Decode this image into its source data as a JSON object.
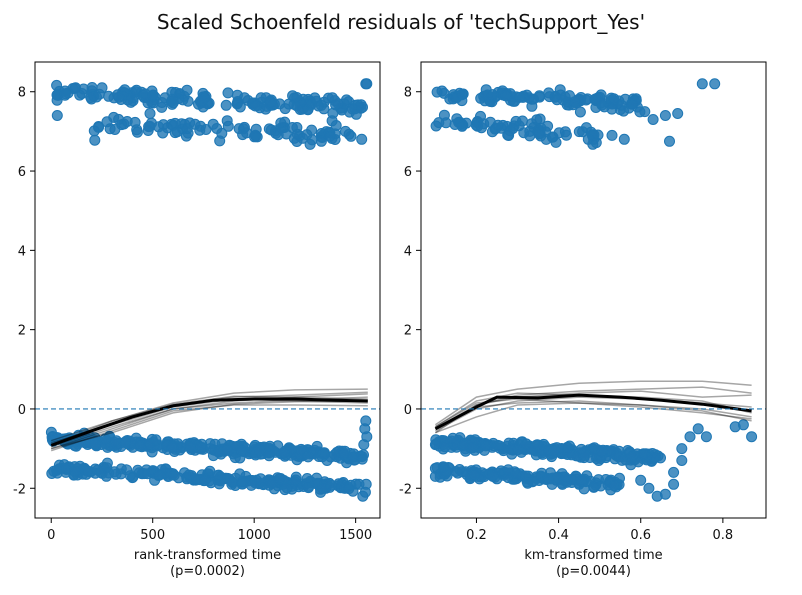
{
  "figure": {
    "title": "Scaled Schoenfeld residuals of 'techSupport_Yes'"
  },
  "chart_data": [
    {
      "type": "scatter",
      "xlabel": "rank-transformed time",
      "xlabel2": "(p=0.0002)",
      "xlim": [
        -80,
        1620
      ],
      "ylim": [
        -2.75,
        8.75
      ],
      "xticks": [
        0,
        500,
        1000,
        1500
      ],
      "yticks": [
        -2,
        0,
        2,
        4,
        6,
        8
      ],
      "reference_line_y": 0,
      "point_color": "#1f77b4",
      "clusters": [
        {
          "name": "upper-top",
          "x_start": 20,
          "x_end": 1540,
          "y_start": 7.95,
          "y_end": 7.65,
          "jitter": 0.1,
          "n": 160
        },
        {
          "name": "upper-bottom",
          "x_start": 200,
          "x_end": 1480,
          "y_start": 7.2,
          "y_end": 6.9,
          "jitter": 0.12,
          "n": 95
        },
        {
          "name": "lower-top",
          "x_start": 0,
          "x_end": 1540,
          "y_start": -0.78,
          "y_end": -1.2,
          "jitter": 0.07,
          "n": 300
        },
        {
          "name": "lower-bottom",
          "x_start": 0,
          "x_end": 1520,
          "y_start": -1.5,
          "y_end": -1.98,
          "jitter": 0.07,
          "n": 220
        }
      ],
      "extra_points": [
        {
          "x": 30,
          "y": 7.4
        },
        {
          "x": 70,
          "y": 7.95
        },
        {
          "x": 120,
          "y": 8.1
        },
        {
          "x": 250,
          "y": 8.1
        },
        {
          "x": 1550,
          "y": 8.2
        },
        {
          "x": 1555,
          "y": 8.2
        },
        {
          "x": 1530,
          "y": 6.8
        },
        {
          "x": 1550,
          "y": -0.3
        },
        {
          "x": 1545,
          "y": -0.5
        },
        {
          "x": 1555,
          "y": -0.7
        },
        {
          "x": 1540,
          "y": -0.9
        },
        {
          "x": 1535,
          "y": -2.2
        },
        {
          "x": 1548,
          "y": -2.1
        },
        {
          "x": 1552,
          "y": -1.9
        }
      ],
      "lowess_main": {
        "x": [
          0,
          200,
          400,
          600,
          800,
          1000,
          1200,
          1400,
          1560
        ],
        "y": [
          -0.92,
          -0.55,
          -0.2,
          0.08,
          0.22,
          0.25,
          0.25,
          0.22,
          0.2
        ]
      },
      "bootstrap_curves": [
        {
          "x": [
            0,
            300,
            600,
            900,
            1200,
            1560
          ],
          "y": [
            -0.8,
            -0.3,
            0.15,
            0.4,
            0.48,
            0.5
          ]
        },
        {
          "x": [
            0,
            300,
            600,
            900,
            1200,
            1560
          ],
          "y": [
            -1.0,
            -0.5,
            0.0,
            0.2,
            0.3,
            0.38
          ]
        },
        {
          "x": [
            0,
            300,
            600,
            900,
            1200,
            1560
          ],
          "y": [
            -0.9,
            -0.35,
            0.1,
            0.3,
            0.35,
            0.42
          ]
        },
        {
          "x": [
            0,
            300,
            600,
            900,
            1200,
            1560
          ],
          "y": [
            -1.05,
            -0.55,
            -0.05,
            0.1,
            0.1,
            0.08
          ]
        },
        {
          "x": [
            0,
            300,
            600,
            900,
            1200,
            1560
          ],
          "y": [
            -0.85,
            -0.4,
            0.05,
            0.25,
            0.2,
            0.15
          ]
        },
        {
          "x": [
            0,
            300,
            600,
            900,
            1200,
            1560
          ],
          "y": [
            -0.95,
            -0.45,
            0.0,
            0.15,
            0.22,
            0.3
          ]
        },
        {
          "x": [
            0,
            300,
            600,
            900,
            1200,
            1560
          ],
          "y": [
            -0.9,
            -0.3,
            0.12,
            0.32,
            0.3,
            0.25
          ]
        },
        {
          "x": [
            0,
            300,
            600,
            900,
            1200,
            1560
          ],
          "y": [
            -1.0,
            -0.6,
            -0.1,
            0.12,
            0.18,
            0.2
          ]
        }
      ]
    },
    {
      "type": "scatter",
      "xlabel": "km-transformed time",
      "xlabel2": "(p=0.0044)",
      "xlim": [
        0.065,
        0.905
      ],
      "ylim": [
        -2.75,
        8.75
      ],
      "xticks": [
        0.2,
        0.4,
        0.6,
        0.8
      ],
      "yticks": [
        -2,
        0,
        2,
        4,
        6,
        8
      ],
      "reference_line_y": 0,
      "point_color": "#1f77b4",
      "clusters": [
        {
          "name": "upper-top",
          "x_start": 0.1,
          "x_end": 0.6,
          "y_start": 7.95,
          "y_end": 7.7,
          "jitter": 0.1,
          "n": 110
        },
        {
          "name": "upper-bottom",
          "x_start": 0.1,
          "x_end": 0.5,
          "y_start": 7.25,
          "y_end": 6.9,
          "jitter": 0.12,
          "n": 70
        },
        {
          "name": "lower-top",
          "x_start": 0.1,
          "x_end": 0.65,
          "y_start": -0.85,
          "y_end": -1.25,
          "jitter": 0.08,
          "n": 220
        },
        {
          "name": "lower-bottom",
          "x_start": 0.1,
          "x_end": 0.55,
          "y_start": -1.55,
          "y_end": -1.9,
          "jitter": 0.07,
          "n": 140
        }
      ],
      "extra_points": [
        {
          "x": 0.61,
          "y": 7.5
        },
        {
          "x": 0.63,
          "y": 7.3
        },
        {
          "x": 0.66,
          "y": 7.4
        },
        {
          "x": 0.69,
          "y": 7.45
        },
        {
          "x": 0.75,
          "y": 8.2
        },
        {
          "x": 0.78,
          "y": 8.2
        },
        {
          "x": 0.67,
          "y": 6.75
        },
        {
          "x": 0.53,
          "y": 6.9
        },
        {
          "x": 0.56,
          "y": 6.8
        },
        {
          "x": 0.6,
          "y": -1.8
        },
        {
          "x": 0.62,
          "y": -2.0
        },
        {
          "x": 0.64,
          "y": -2.2
        },
        {
          "x": 0.66,
          "y": -2.15
        },
        {
          "x": 0.68,
          "y": -1.9
        },
        {
          "x": 0.68,
          "y": -1.6
        },
        {
          "x": 0.7,
          "y": -1.3
        },
        {
          "x": 0.7,
          "y": -1.0
        },
        {
          "x": 0.72,
          "y": -0.7
        },
        {
          "x": 0.74,
          "y": -0.5
        },
        {
          "x": 0.76,
          "y": -0.7
        },
        {
          "x": 0.83,
          "y": -0.45
        },
        {
          "x": 0.85,
          "y": -0.4
        },
        {
          "x": 0.87,
          "y": -0.7
        },
        {
          "x": 0.1,
          "y": -1.5
        },
        {
          "x": 0.1,
          "y": -0.9
        },
        {
          "x": 0.1,
          "y": -1.7
        }
      ],
      "lowess_main": {
        "x": [
          0.1,
          0.2,
          0.25,
          0.35,
          0.45,
          0.55,
          0.65,
          0.75,
          0.87
        ],
        "y": [
          -0.5,
          0.05,
          0.3,
          0.28,
          0.35,
          0.3,
          0.22,
          0.12,
          -0.05
        ]
      },
      "bootstrap_curves": [
        {
          "x": [
            0.1,
            0.2,
            0.3,
            0.45,
            0.6,
            0.75,
            0.87
          ],
          "y": [
            -0.4,
            0.3,
            0.5,
            0.65,
            0.7,
            0.7,
            0.6
          ]
        },
        {
          "x": [
            0.1,
            0.2,
            0.3,
            0.45,
            0.6,
            0.75,
            0.87
          ],
          "y": [
            -0.6,
            -0.2,
            0.1,
            0.15,
            0.1,
            0.0,
            -0.2
          ]
        },
        {
          "x": [
            0.1,
            0.2,
            0.3,
            0.45,
            0.6,
            0.75,
            0.87
          ],
          "y": [
            -0.5,
            0.1,
            0.35,
            0.45,
            0.5,
            0.55,
            0.4
          ]
        },
        {
          "x": [
            0.1,
            0.2,
            0.3,
            0.45,
            0.6,
            0.75,
            0.87
          ],
          "y": [
            -0.55,
            0.0,
            0.2,
            0.3,
            0.25,
            0.15,
            0.05
          ]
        },
        {
          "x": [
            0.1,
            0.2,
            0.3,
            0.45,
            0.6,
            0.75,
            0.87
          ],
          "y": [
            -0.45,
            0.2,
            0.4,
            0.35,
            0.3,
            0.2,
            -0.1
          ]
        },
        {
          "x": [
            0.1,
            0.2,
            0.3,
            0.45,
            0.6,
            0.75,
            0.87
          ],
          "y": [
            -0.5,
            0.05,
            0.15,
            0.2,
            0.1,
            -0.05,
            -0.3
          ]
        },
        {
          "x": [
            0.1,
            0.2,
            0.3,
            0.45,
            0.6,
            0.75,
            0.87
          ],
          "y": [
            -0.6,
            0.1,
            0.3,
            0.4,
            0.45,
            0.3,
            0.35
          ]
        },
        {
          "x": [
            0.1,
            0.2,
            0.3,
            0.45,
            0.6,
            0.75,
            0.87
          ],
          "y": [
            -0.45,
            0.15,
            0.25,
            0.15,
            0.05,
            -0.1,
            -0.25
          ]
        }
      ]
    }
  ]
}
